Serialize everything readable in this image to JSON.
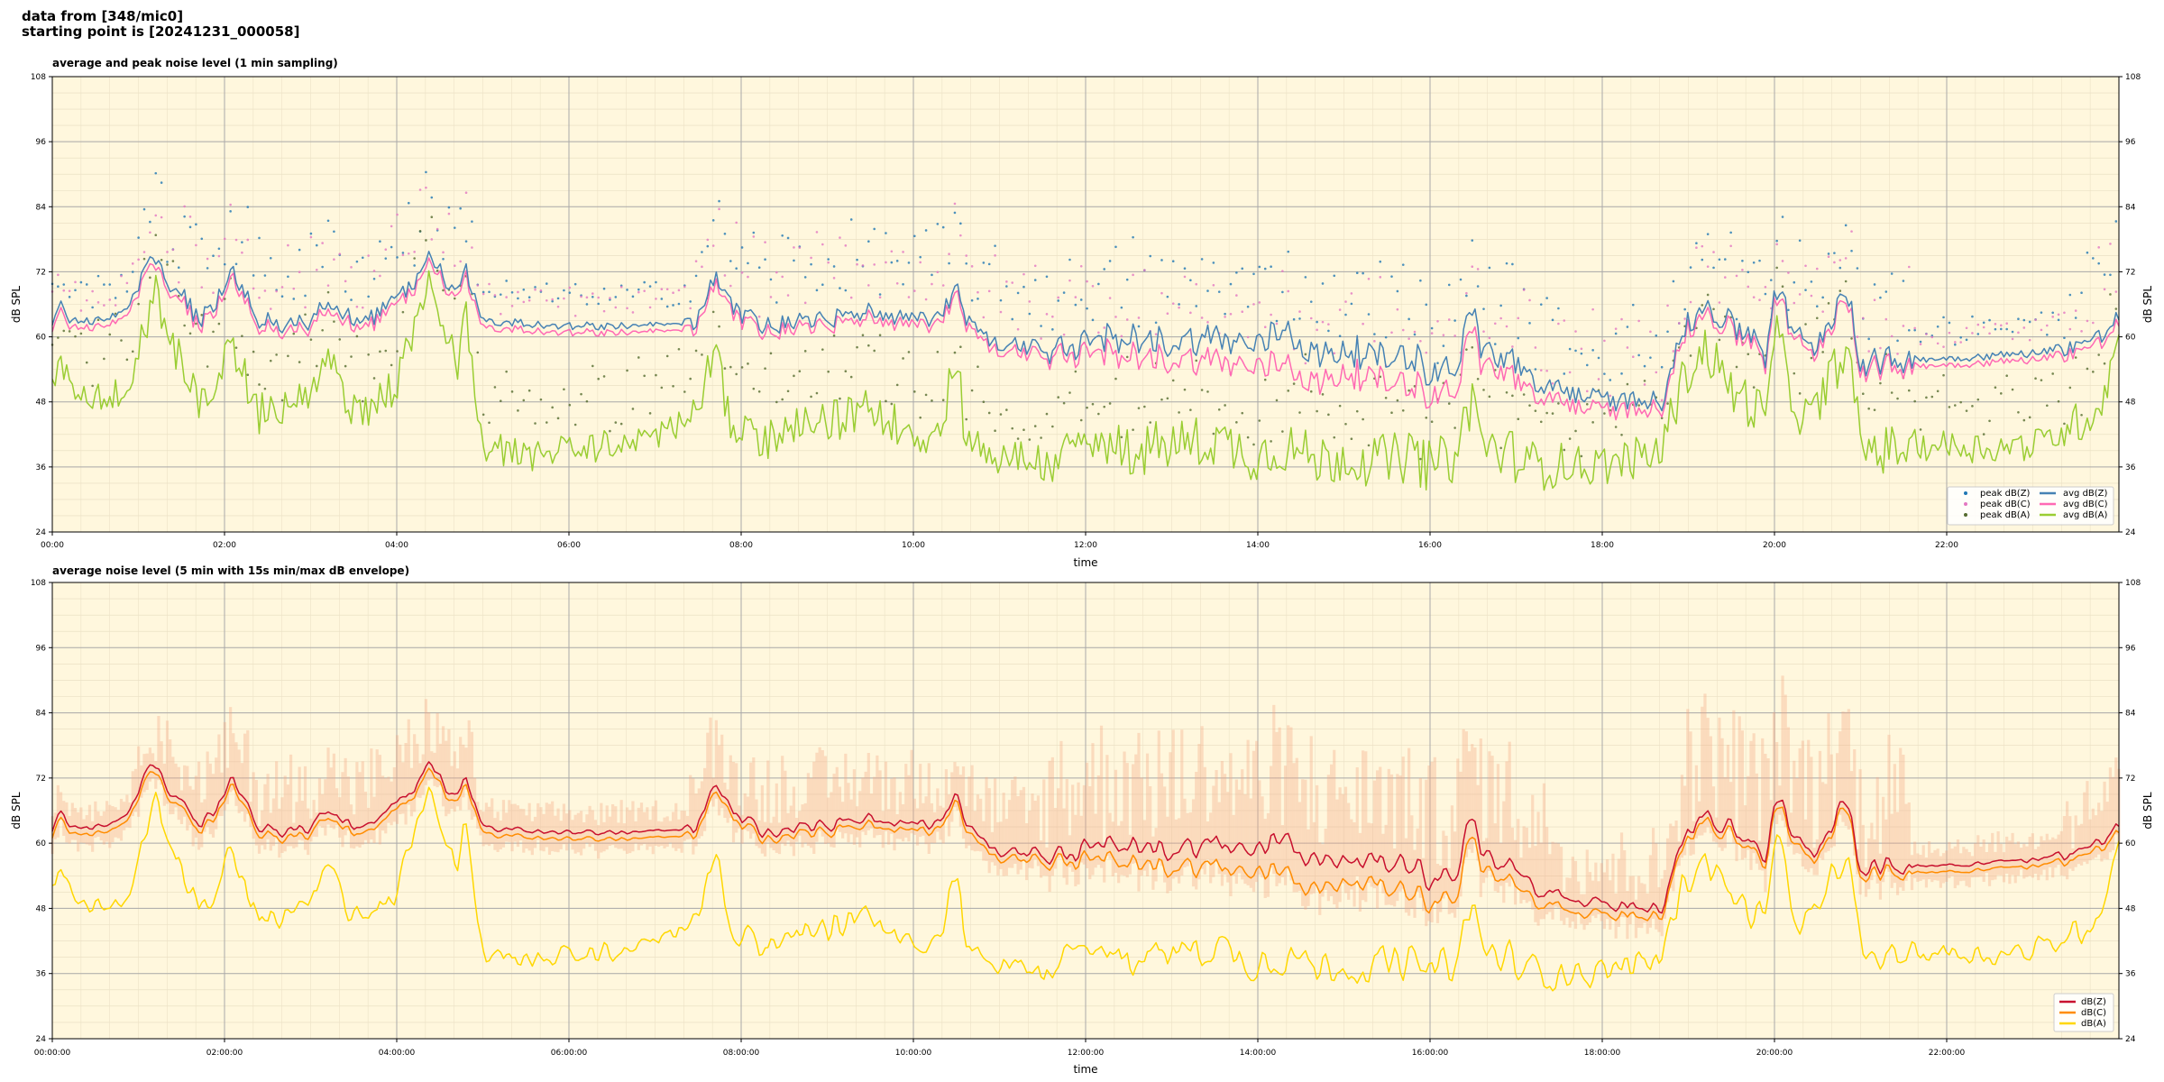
{
  "header": {
    "line1": "data from [348/mic0]",
    "line2": "starting point is [20241231_000058]"
  },
  "chart_data": [
    {
      "type": "line",
      "title": "average and peak noise level (1 min sampling)",
      "xlabel": "time",
      "ylabel": "dB SPL",
      "ylim": [
        24,
        108
      ],
      "yticks": [
        24,
        36,
        48,
        60,
        72,
        84,
        96,
        108
      ],
      "xlim_hours": [
        0,
        24
      ],
      "xticks": [
        "00:00",
        "02:00",
        "04:00",
        "06:00",
        "08:00",
        "10:00",
        "12:00",
        "14:00",
        "16:00",
        "18:00",
        "20:00",
        "22:00"
      ],
      "grid": true,
      "legend": "bottom-right",
      "background": "#fff7dd",
      "series": [
        {
          "name": "peak dB(Z)",
          "kind": "scatter",
          "color": "#1f77b4",
          "ref": "z",
          "offset": 3
        },
        {
          "name": "peak dB(C)",
          "kind": "scatter",
          "color": "#e377c2",
          "ref": "c",
          "offset": 3
        },
        {
          "name": "peak dB(A)",
          "kind": "scatter",
          "color": "#556b2f",
          "ref": "a",
          "offset": 4
        },
        {
          "name": "avg dB(Z)",
          "kind": "line",
          "color": "#4682b4",
          "ref": "z"
        },
        {
          "name": "avg dB(C)",
          "kind": "line",
          "color": "#ff69b4",
          "ref": "c"
        },
        {
          "name": "avg dB(A)",
          "kind": "line",
          "color": "#9acd32",
          "ref": "a"
        }
      ]
    },
    {
      "type": "line",
      "title": "average noise level (5 min with 15s min/max dB envelope)",
      "xlabel": "time",
      "ylabel": "dB SPL",
      "ylim": [
        24,
        108
      ],
      "yticks": [
        24,
        36,
        48,
        60,
        72,
        84,
        96,
        108
      ],
      "xlim_hours": [
        0,
        24
      ],
      "xticks": [
        "00:00:00",
        "02:00:00",
        "04:00:00",
        "06:00:00",
        "08:00:00",
        "10:00:00",
        "12:00:00",
        "14:00:00",
        "16:00:00",
        "18:00:00",
        "20:00:00",
        "22:00:00"
      ],
      "grid": true,
      "legend": "bottom-right",
      "background": "#fff7dd",
      "envelope_color": "#f4a582",
      "series": [
        {
          "name": "dB(Z)",
          "kind": "line",
          "color": "#c8102e",
          "ref": "z"
        },
        {
          "name": "dB(C)",
          "kind": "line",
          "color": "#ff8c00",
          "ref": "c"
        },
        {
          "name": "dB(A)",
          "kind": "line",
          "color": "#ffd700",
          "ref": "a"
        }
      ]
    }
  ],
  "avg_profile": {
    "hours": [
      0,
      0.1,
      0.2,
      0.5,
      0.8,
      1.0,
      1.2,
      1.3,
      1.5,
      1.7,
      1.9,
      2.1,
      2.4,
      2.8,
      3.0,
      3.2,
      3.5,
      3.8,
      4.0,
      4.2,
      4.4,
      4.5,
      4.7,
      4.8,
      5.0,
      5.5,
      6.0,
      6.5,
      7.0,
      7.3,
      7.5,
      7.7,
      7.8,
      7.9,
      8.0,
      8.3,
      8.6,
      9.0,
      9.5,
      10.0,
      10.3,
      10.5,
      10.6,
      10.8,
      11.0,
      11.5,
      11.8,
      12.0,
      12.5,
      13.0,
      13.5,
      14.0,
      14.3,
      14.7,
      15.0,
      15.4,
      15.8,
      16.0,
      16.3,
      16.5,
      16.6,
      16.8,
      17.0,
      17.2,
      17.4,
      17.8,
      18.2,
      18.5,
      18.7,
      18.8,
      19.0,
      19.2,
      19.5,
      19.8,
      19.9,
      20.0,
      20.2,
      20.4,
      20.6,
      20.8,
      20.9,
      21.0,
      21.3,
      21.6,
      22.0,
      22.5,
      23.0,
      23.3,
      23.6,
      23.8,
      24.0
    ],
    "z": [
      62,
      67,
      63,
      63,
      64,
      69,
      75,
      70,
      68,
      63,
      66,
      72,
      63,
      62,
      63,
      66,
      63,
      64,
      67,
      70,
      76,
      72,
      68,
      72,
      63,
      62.5,
      62,
      62,
      62,
      62.5,
      63,
      71,
      70,
      65,
      64,
      62,
      63,
      63,
      65,
      63,
      63,
      70,
      63,
      60,
      58.5,
      57.5,
      57,
      60,
      60,
      59,
      60,
      58,
      62,
      56,
      58,
      56,
      57,
      53,
      55,
      65,
      58,
      56,
      56,
      50,
      51,
      49,
      48,
      48.5,
      48,
      56,
      62,
      66,
      62,
      60,
      56,
      70,
      62,
      57,
      62,
      68,
      66,
      55,
      55.5,
      56,
      56,
      56.5,
      57,
      58,
      59,
      60,
      64
    ],
    "c": [
      61,
      66,
      62,
      62,
      63,
      68,
      74,
      69,
      67,
      62,
      65,
      71,
      62,
      61,
      62,
      65,
      62,
      63,
      66,
      69,
      75,
      71,
      67,
      71,
      62,
      61.5,
      61,
      61,
      61,
      61.5,
      62,
      70,
      69,
      64,
      63,
      61,
      62,
      62,
      64,
      62,
      62,
      69,
      62,
      59,
      57.5,
      56.5,
      56,
      58,
      57,
      56,
      56,
      54,
      56,
      51,
      54,
      52,
      52,
      49,
      51,
      62,
      55,
      54,
      53,
      48,
      49,
      47,
      46.5,
      47,
      47,
      55,
      61,
      65,
      61,
      59,
      55,
      69,
      61,
      56,
      61,
      67,
      65,
      54,
      54.5,
      55,
      55,
      55.5,
      56,
      57,
      58,
      59,
      63
    ],
    "a": [
      52,
      54,
      51,
      49,
      50,
      56,
      70,
      62,
      55,
      47,
      52,
      58,
      46,
      47,
      49,
      55,
      47,
      48,
      52,
      60,
      70,
      62,
      55,
      64,
      40,
      38,
      39,
      40,
      42,
      44,
      46,
      58,
      50,
      43,
      42,
      41,
      43,
      44,
      47,
      42,
      42,
      58,
      42,
      39,
      38,
      37,
      38,
      40,
      39,
      40,
      41,
      38,
      40,
      37,
      38,
      37,
      38,
      36,
      38,
      50,
      40,
      39,
      38,
      36,
      37,
      36,
      37,
      38,
      39,
      46,
      54,
      58,
      50,
      47,
      43,
      62,
      49,
      44,
      50,
      58,
      52,
      40,
      39,
      40,
      40,
      39.5,
      40,
      42,
      45,
      48,
      60
    ]
  }
}
